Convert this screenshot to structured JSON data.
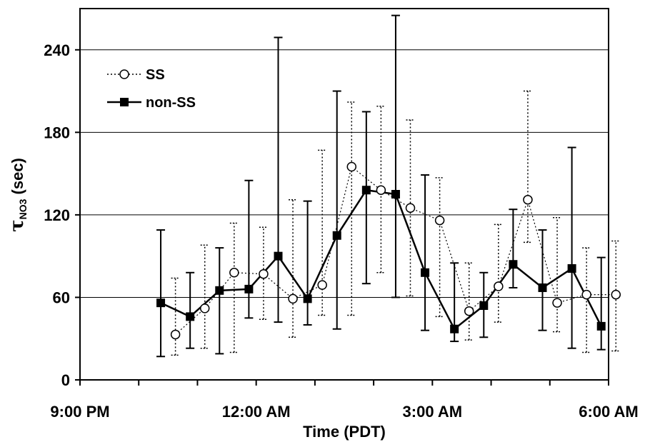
{
  "chart_data": {
    "type": "line",
    "xlabel": "Time (PDT)",
    "ylabel": {
      "main": "τ",
      "sub": "NO3",
      "rest": " (sec)"
    },
    "x_ticks": [
      "9:00 PM",
      "12:00 AM",
      "3:00 AM",
      "6:00 AM"
    ],
    "x_tick_hours": [
      21,
      24,
      27,
      30
    ],
    "xlim": [
      21,
      30
    ],
    "ylim": [
      0,
      270
    ],
    "y_ticks": [
      0,
      60,
      120,
      180,
      240
    ],
    "grid": "horizontal",
    "legend_position": "top-left",
    "series": [
      {
        "name": "SS",
        "style": "dotted line, open circle markers",
        "color": "#000000",
        "x": [
          22.625,
          23.125,
          23.625,
          24.125,
          24.625,
          25.125,
          25.625,
          26.125,
          26.625,
          27.125,
          27.625,
          28.125,
          28.625,
          29.125,
          29.625,
          30.125
        ],
        "y": [
          33,
          52,
          78,
          77,
          59,
          69,
          155,
          138,
          125,
          116,
          50,
          68,
          131,
          56,
          62,
          62
        ],
        "err_low": [
          18,
          23,
          20,
          44,
          31,
          47,
          47,
          78,
          61,
          46,
          29,
          42,
          100,
          35,
          20,
          21
        ],
        "err_high": [
          74,
          98,
          114,
          111,
          131,
          167,
          202,
          199,
          189,
          147,
          85,
          113,
          210,
          118,
          96,
          101
        ]
      },
      {
        "name": "non-SS",
        "style": "solid line, filled square markers",
        "color": "#000000",
        "x": [
          22.375,
          22.875,
          23.375,
          23.875,
          24.375,
          24.875,
          25.375,
          25.875,
          26.375,
          26.875,
          27.375,
          27.875,
          28.375,
          28.875,
          29.375,
          29.875
        ],
        "y": [
          56,
          46,
          65,
          66,
          90,
          59,
          105,
          138,
          135,
          78,
          37,
          54,
          84,
          67,
          81,
          39
        ],
        "err_low": [
          17,
          23,
          19,
          45,
          42,
          40,
          37,
          70,
          60,
          36,
          28,
          31,
          67,
          36,
          23,
          22
        ],
        "err_high": [
          109,
          78,
          96,
          145,
          249,
          130,
          210,
          195,
          265,
          149,
          85,
          78,
          124,
          109,
          169,
          89
        ]
      }
    ]
  }
}
